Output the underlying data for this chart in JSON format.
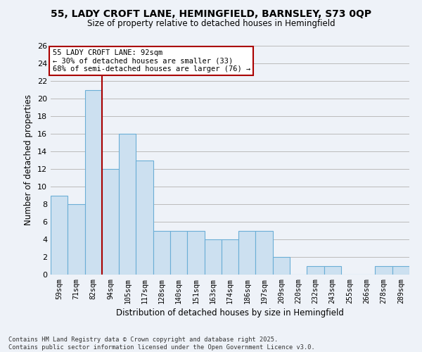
{
  "title_line1": "55, LADY CROFT LANE, HEMINGFIELD, BARNSLEY, S73 0QP",
  "title_line2": "Size of property relative to detached houses in Hemingfield",
  "xlabel": "Distribution of detached houses by size in Hemingfield",
  "ylabel": "Number of detached properties",
  "categories": [
    "59sqm",
    "71sqm",
    "82sqm",
    "94sqm",
    "105sqm",
    "117sqm",
    "128sqm",
    "140sqm",
    "151sqm",
    "163sqm",
    "174sqm",
    "186sqm",
    "197sqm",
    "209sqm",
    "220sqm",
    "232sqm",
    "243sqm",
    "255sqm",
    "266sqm",
    "278sqm",
    "289sqm"
  ],
  "values": [
    9,
    8,
    21,
    12,
    16,
    13,
    5,
    5,
    5,
    4,
    4,
    5,
    5,
    2,
    0,
    1,
    1,
    0,
    0,
    1,
    1
  ],
  "bar_color": "#cce0f0",
  "bar_edge_color": "#6baed6",
  "grid_color": "#bbbbbb",
  "bg_color": "#eef2f8",
  "vline_after_index": 2,
  "vline_color": "#aa0000",
  "annotation_text": "55 LADY CROFT LANE: 92sqm\n← 30% of detached houses are smaller (33)\n68% of semi-detached houses are larger (76) →",
  "annotation_box_color": "#ffffff",
  "annotation_box_edge": "#aa0000",
  "ylim": [
    0,
    26
  ],
  "yticks": [
    0,
    2,
    4,
    6,
    8,
    10,
    12,
    14,
    16,
    18,
    20,
    22,
    24,
    26
  ],
  "footer_line1": "Contains HM Land Registry data © Crown copyright and database right 2025.",
  "footer_line2": "Contains public sector information licensed under the Open Government Licence v3.0."
}
